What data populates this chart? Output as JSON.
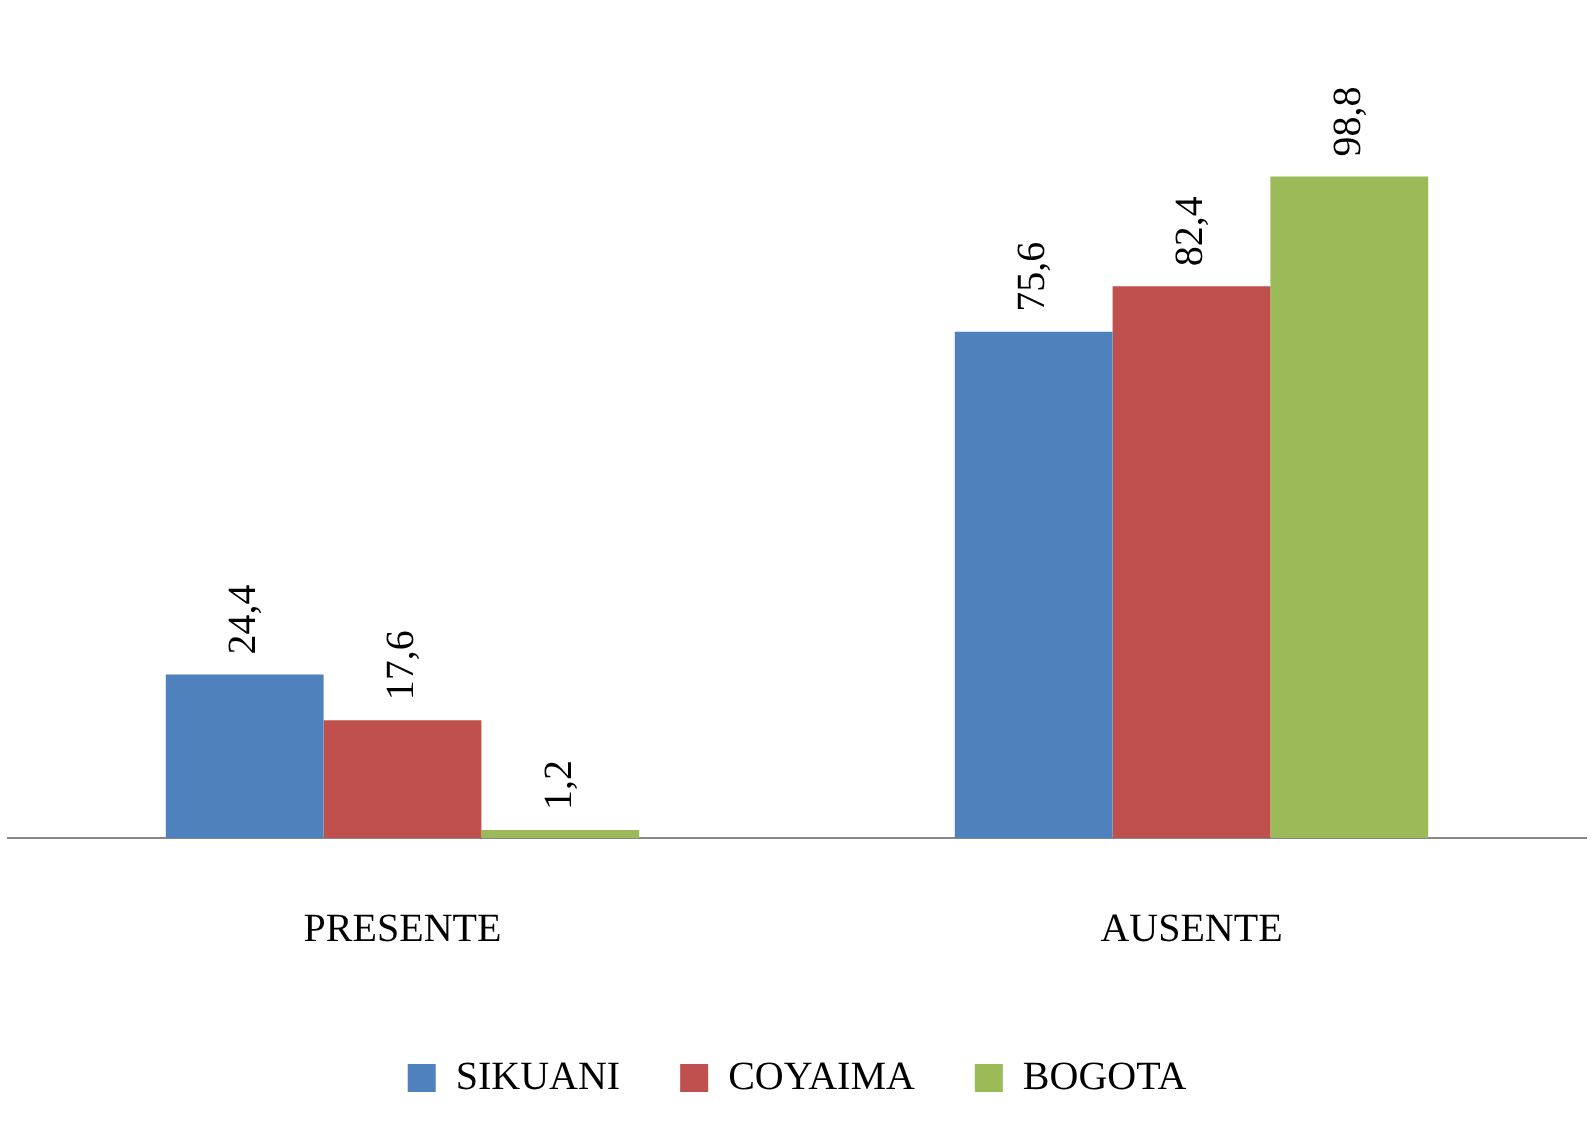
{
  "chart_data": {
    "type": "bar",
    "categories": [
      "PRESENTE",
      "AUSENTE"
    ],
    "series": [
      {
        "name": "SIKUANI",
        "color": "#4f81bd",
        "values": [
          24.4,
          75.6
        ],
        "value_labels": [
          "24,4",
          "75,6"
        ]
      },
      {
        "name": "COYAIMA",
        "color": "#c0504d",
        "values": [
          17.6,
          82.4
        ],
        "value_labels": [
          "17,6",
          "82,4"
        ]
      },
      {
        "name": "BOGOTA",
        "color": "#9bbb59",
        "values": [
          1.2,
          98.8
        ],
        "value_labels": [
          "1,2",
          "98,8"
        ]
      }
    ],
    "grid": false,
    "legend": "bottom"
  }
}
